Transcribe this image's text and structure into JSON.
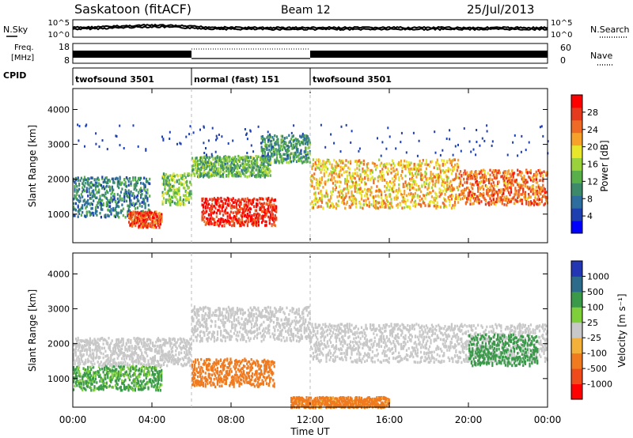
{
  "header": {
    "title": "Saskatoon (fitACF)",
    "beam": "Beam 12",
    "date": "25/Jul/2013"
  },
  "top_panels": {
    "nsky_label": "N.Sky",
    "nsearch_label": "N.Search",
    "freq_label_1": "Freq.",
    "freq_label_2": "[MHz]",
    "nave_label": "Nave",
    "cpid_label": "CPID",
    "left_ticks_noise": [
      "10^5",
      "10^0"
    ],
    "right_ticks_noise": [
      "10^5",
      "10^0"
    ],
    "left_ticks_freq": [
      "18",
      "8"
    ],
    "right_ticks_nave": [
      "60",
      "0"
    ]
  },
  "cpid_segments": [
    {
      "label": "twofsound 3501",
      "start_h": 0,
      "end_h": 6
    },
    {
      "label": "normal (fast) 151",
      "start_h": 6,
      "end_h": 12
    },
    {
      "label": "twofsound 3501",
      "start_h": 12,
      "end_h": 24
    }
  ],
  "power_colorbar": {
    "title": "Power [dB]",
    "ticks": [
      "28",
      "24",
      "20",
      "16",
      "12",
      "8",
      "4"
    ],
    "colors": [
      "#0000ff",
      "#1e3fb0",
      "#2e6e9e",
      "#3c8a6a",
      "#59b04a",
      "#9ad23c",
      "#e7e62a",
      "#f6a12a",
      "#ef6a24",
      "#e53a1d",
      "#ff0000"
    ]
  },
  "velocity_colorbar": {
    "title": "Velocity [m s⁻¹]",
    "ticks": [
      "1000",
      "500",
      "100",
      "25",
      "-25",
      "-100",
      "-500",
      "-1000"
    ],
    "colors": [
      "#2337b4",
      "#2d6b8a",
      "#3a9a4a",
      "#7fcf3a",
      "#c8c8c8",
      "#f3b03a",
      "#f07a1e",
      "#ee4a1a",
      "#ff0000"
    ]
  },
  "chart_data": [
    {
      "type": "heatmap",
      "title": "",
      "xlabel": "",
      "ylabel": "Slant Range [km]",
      "xlim": [
        0,
        24
      ],
      "ylim": [
        180,
        4600
      ],
      "x_ticks": [
        0,
        4,
        8,
        12,
        16,
        20,
        24
      ],
      "y_ticks": [
        1000,
        2000,
        3000,
        4000
      ],
      "colorbar": "Power [dB]",
      "echo_bands": [
        {
          "t_start": 0.0,
          "t_end": 3.9,
          "r_low": 950,
          "r_high": 2100,
          "level": 8
        },
        {
          "t_start": 2.8,
          "t_end": 4.5,
          "r_low": 650,
          "r_high": 1100,
          "level": 26
        },
        {
          "t_start": 4.5,
          "t_end": 6.0,
          "r_low": 1300,
          "r_high": 2200,
          "level": 14
        },
        {
          "t_start": 6.0,
          "t_end": 10.0,
          "r_low": 2100,
          "r_high": 2700,
          "level": 12
        },
        {
          "t_start": 6.5,
          "t_end": 10.3,
          "r_low": 700,
          "r_high": 1500,
          "level": 28
        },
        {
          "t_start": 9.5,
          "t_end": 12.0,
          "r_low": 2500,
          "r_high": 3300,
          "level": 10
        },
        {
          "t_start": 12.0,
          "t_end": 19.5,
          "r_low": 1200,
          "r_high": 2600,
          "level": 20
        },
        {
          "t_start": 19.5,
          "t_end": 24.0,
          "r_low": 1300,
          "r_high": 2300,
          "level": 24
        }
      ]
    },
    {
      "type": "heatmap",
      "title": "",
      "xlabel": "Time UT",
      "ylabel": "Slant Range [km]",
      "xlim": [
        0,
        24
      ],
      "ylim": [
        180,
        4600
      ],
      "x_ticks": [
        "00:00",
        "04:00",
        "08:00",
        "12:00",
        "16:00",
        "20:00",
        "00:00"
      ],
      "y_ticks": [
        1000,
        2000,
        3000,
        4000
      ],
      "colorbar": "Velocity [m s⁻¹]",
      "echo_bands": [
        {
          "t_start": 0.0,
          "t_end": 4.5,
          "r_low": 700,
          "r_high": 1400,
          "velocity": 150
        },
        {
          "t_start": 0.0,
          "t_end": 6.0,
          "r_low": 1400,
          "r_high": 2200,
          "velocity": 0
        },
        {
          "t_start": 6.0,
          "t_end": 10.2,
          "r_low": 800,
          "r_high": 1600,
          "velocity": -300
        },
        {
          "t_start": 6.0,
          "t_end": 12.0,
          "r_low": 2100,
          "r_high": 3100,
          "velocity": 0
        },
        {
          "t_start": 12.0,
          "t_end": 24.0,
          "r_low": 1500,
          "r_high": 2600,
          "velocity": 0
        },
        {
          "t_start": 20.0,
          "t_end": 23.5,
          "r_low": 1400,
          "r_high": 2300,
          "velocity": 300
        },
        {
          "t_start": 11.0,
          "t_end": 16.0,
          "r_low": 200,
          "r_high": 500,
          "velocity": -200
        }
      ]
    }
  ]
}
